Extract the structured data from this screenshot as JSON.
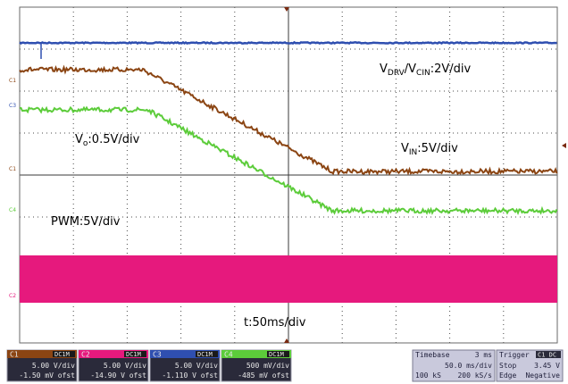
{
  "screen": {
    "background": "#ffffff",
    "grid_divisions": {
      "horizontal": 10,
      "vertical": 8
    }
  },
  "colors": {
    "ch1": "#8b4513",
    "ch2": "#e6197d",
    "ch3": "#2f4fb0",
    "ch4": "#5ccc3a"
  },
  "channel_markers": [
    {
      "text": "C1",
      "channel": "ch1"
    },
    {
      "text": "C3",
      "channel": "ch3"
    },
    {
      "text": "C1",
      "channel": "ch1"
    },
    {
      "text": "C4",
      "channel": "ch4"
    },
    {
      "text": "C2",
      "channel": "ch2"
    }
  ],
  "annotations": {
    "vdrv": {
      "v1": "V",
      "s1": "DRV",
      "v2": "/V",
      "s2": "CIN",
      "rest": ":2V/div"
    },
    "vo": {
      "v": "V",
      "s": "o",
      "rest": ":0.5V/div"
    },
    "vin": {
      "v": "V",
      "s": "IN",
      "rest": ":5V/div"
    },
    "pwm": "PWM:5V/div",
    "time": "t:50ms/div"
  },
  "channels": [
    {
      "id": "C1",
      "mode": "DC1M",
      "scale": "5.00 V/div",
      "offset": "-1.50 mV ofst",
      "color_key": "ch1"
    },
    {
      "id": "C2",
      "mode": "DC1M",
      "scale": "5.00 V/div",
      "offset": "-14.90 V ofst",
      "color_key": "ch2"
    },
    {
      "id": "C3",
      "mode": "DC1M",
      "scale": "5.00 V/div",
      "offset": "-1.110 V ofst",
      "color_key": "ch3"
    },
    {
      "id": "C4",
      "mode": "DC1M",
      "scale": "500 mV/div",
      "offset": "-485 mV ofst",
      "color_key": "ch4"
    }
  ],
  "timebase": {
    "label": "Timebase",
    "delay": "3 ms",
    "per_div": "50.0 ms/div",
    "samples": "100 kS",
    "rate": "200 kS/s"
  },
  "trigger": {
    "label": "Trigger",
    "channel": "C1 DC",
    "mode": "Stop",
    "level": "3.45 V",
    "type": "Edge",
    "slope": "Negative"
  }
}
